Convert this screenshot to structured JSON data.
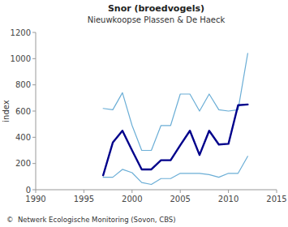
{
  "chart_data": {
    "type": "line",
    "title": "Snor (broedvogels)",
    "subtitle": "Nieuwkoopse Plassen & De Haeck",
    "y_label": "index",
    "footer": "©  Netwerk Ecologische Monitoring (Sovon, CBS)",
    "x": [
      1997,
      1998,
      1999,
      2000,
      2001,
      2002,
      2003,
      2004,
      2005,
      2006,
      2007,
      2008,
      2009,
      2010,
      2011,
      2012
    ],
    "series": [
      {
        "color": "#6baed6",
        "values": [
          620,
          610,
          740,
          490,
          300,
          300,
          490,
          490,
          730,
          730,
          600,
          730,
          610,
          600,
          610,
          1040
        ]
      },
      {
        "color": "#6baed6",
        "values": [
          95,
          95,
          155,
          130,
          55,
          40,
          85,
          85,
          125,
          125,
          125,
          115,
          95,
          125,
          125,
          255
        ]
      },
      {
        "color": "#00008b",
        "values": [
          110,
          360,
          450,
          300,
          155,
          155,
          225,
          225,
          340,
          450,
          265,
          450,
          345,
          350,
          645,
          650
        ]
      }
    ],
    "xlim": [
      1990,
      2015
    ],
    "ylim": [
      0,
      1200
    ],
    "xticks": [
      1990,
      1995,
      2000,
      2005,
      2010,
      2015
    ],
    "yticks": [
      0,
      200,
      400,
      600,
      800,
      1000,
      1200
    ],
    "grid": false
  }
}
